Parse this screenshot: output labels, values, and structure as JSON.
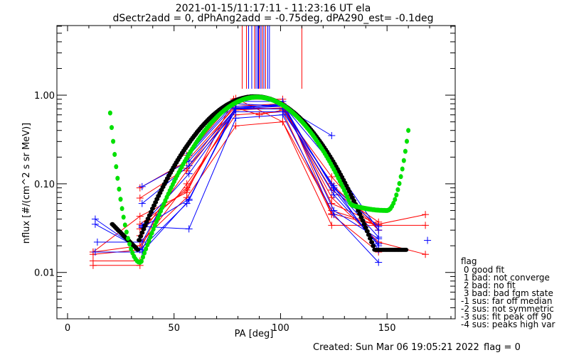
{
  "chart_data": {
    "type": "line",
    "title_line1": "2021-01-15/11:17:11 - 11:23:16 UT ela",
    "title_line2": "dSectr2add = 0, dPhAng2add = -0.75deg, dPA290_est=  -0.1deg",
    "xlabel": "PA [deg]",
    "ylabel": "nflux [#/(cm^2 s sr MeV)]",
    "xlim": [
      -5,
      182
    ],
    "ylim": [
      0.003,
      6.1
    ],
    "yscale": "log",
    "xticks": [
      0,
      50,
      100,
      150
    ],
    "xtick_labels": [
      "0",
      "50",
      "100",
      "150"
    ],
    "yticks": [
      1.0,
      0.1,
      0.01
    ],
    "ytick_labels": [
      "1.00",
      "0.10",
      "0.01"
    ],
    "colors": {
      "red": "#ff0000",
      "blue": "#0000ff",
      "green": "#00e000",
      "black": "#000000"
    },
    "series": [
      {
        "name": "r1",
        "color": "red",
        "points": [
          [
            12,
            0.017
          ],
          [
            34,
            0.043
          ],
          [
            56,
            0.08
          ],
          [
            78,
            0.9
          ],
          [
            101,
            0.9
          ],
          [
            124,
            0.046
          ],
          [
            146,
            0.034
          ]
        ]
      },
      {
        "name": "r2",
        "color": "red",
        "points": [
          [
            12,
            0.0135
          ],
          [
            34,
            0.0135
          ]
        ]
      },
      {
        "name": "r3",
        "color": "red",
        "points": [
          [
            12,
            0.012
          ],
          [
            34,
            0.012
          ]
        ]
      },
      {
        "name": "r4",
        "color": "red",
        "points": [
          [
            12,
            0.016
          ],
          [
            34,
            0.018
          ],
          [
            56,
            0.21
          ],
          [
            79,
            0.92
          ],
          [
            101,
            0.5
          ],
          [
            124,
            0.034
          ],
          [
            146,
            0.034
          ],
          [
            168,
            0.034
          ]
        ]
      },
      {
        "name": "r5",
        "color": "red",
        "points": [
          [
            34,
            0.09
          ],
          [
            56,
            0.18
          ],
          [
            79,
            0.75
          ],
          [
            101,
            0.8
          ],
          [
            124,
            0.06
          ],
          [
            146,
            0.035
          ],
          [
            168,
            0.045
          ]
        ]
      },
      {
        "name": "r6",
        "color": "red",
        "points": [
          [
            34,
            0.069
          ],
          [
            56,
            0.15
          ],
          [
            79,
            0.8
          ],
          [
            101,
            0.75
          ],
          [
            124,
            0.07
          ],
          [
            146,
            0.022
          ],
          [
            168,
            0.016
          ]
        ]
      },
      {
        "name": "r7",
        "color": "red",
        "points": [
          [
            34,
            0.026
          ],
          [
            56,
            0.14
          ],
          [
            79,
            0.72
          ],
          [
            101,
            0.7
          ],
          [
            124,
            0.085
          ],
          [
            146,
            0.037
          ]
        ]
      },
      {
        "name": "r8",
        "color": "red",
        "points": [
          [
            34,
            0.031
          ],
          [
            56,
            0.09
          ],
          [
            79,
            0.68
          ],
          [
            101,
            0.72
          ],
          [
            124,
            0.1
          ],
          [
            146,
            0.03
          ]
        ]
      },
      {
        "name": "r9",
        "color": "red",
        "points": [
          [
            12,
            0.017
          ],
          [
            34,
            0.02
          ],
          [
            56,
            0.1
          ],
          [
            79,
            0.6
          ],
          [
            101,
            0.65
          ],
          [
            124,
            0.045
          ],
          [
            146,
            0.017
          ]
        ]
      },
      {
        "name": "r10",
        "color": "red",
        "points": [
          [
            34,
            0.035
          ],
          [
            56,
            0.085
          ],
          [
            79,
            0.72
          ],
          [
            90,
            0.6
          ],
          [
            101,
            0.68
          ],
          [
            124,
            0.12
          ],
          [
            146,
            0.03
          ]
        ]
      },
      {
        "name": "r11",
        "color": "red",
        "points": [
          [
            34,
            0.022
          ],
          [
            56,
            0.07
          ],
          [
            79,
            0.45
          ],
          [
            101,
            0.5
          ],
          [
            124,
            0.05
          ],
          [
            146,
            0.034
          ]
        ]
      },
      {
        "name": "b1",
        "color": "blue",
        "points": [
          [
            13,
            0.04
          ],
          [
            34,
            0.018
          ],
          [
            56,
            0.06
          ],
          [
            79,
            0.7
          ],
          [
            101,
            0.75
          ],
          [
            124,
            0.35
          ]
        ]
      },
      {
        "name": "b2",
        "color": "blue",
        "points": [
          [
            13,
            0.035
          ],
          [
            35,
            0.018
          ],
          [
            57,
            0.22
          ],
          [
            79,
            0.85
          ],
          [
            101,
            0.85
          ],
          [
            125,
            0.05
          ],
          [
            146,
            0.024
          ]
        ]
      },
      {
        "name": "b3",
        "color": "blue",
        "points": [
          [
            14,
            0.022
          ],
          [
            35,
            0.022
          ],
          [
            57,
            0.21
          ],
          [
            79,
            0.8
          ],
          [
            101,
            0.75
          ],
          [
            125,
            0.09
          ],
          [
            146,
            0.025
          ]
        ]
      },
      {
        "name": "b4",
        "color": "blue",
        "points": [
          [
            13,
            0.017
          ],
          [
            35,
            0.017
          ],
          [
            57,
            0.065
          ],
          [
            79,
            0.75
          ],
          [
            101,
            0.75
          ],
          [
            125,
            0.09
          ],
          [
            146,
            0.033
          ]
        ]
      },
      {
        "name": "b5",
        "color": "blue",
        "points": [
          [
            35,
            0.093
          ],
          [
            57,
            0.18
          ],
          [
            79,
            0.7
          ],
          [
            101,
            0.7
          ],
          [
            125,
            0.075
          ],
          [
            146,
            0.021
          ]
        ]
      },
      {
        "name": "b6",
        "color": "blue",
        "points": [
          [
            35,
            0.06
          ],
          [
            57,
            0.16
          ],
          [
            79,
            0.65
          ],
          [
            101,
            0.65
          ],
          [
            125,
            0.095
          ],
          [
            146,
            0.018
          ]
        ]
      },
      {
        "name": "b7",
        "color": "blue",
        "points": [
          [
            35,
            0.033
          ],
          [
            57,
            0.031
          ],
          [
            79,
            0.55
          ],
          [
            101,
            0.6
          ],
          [
            125,
            0.045
          ],
          [
            146,
            0.013
          ]
        ]
      },
      {
        "name": "b8",
        "color": "blue",
        "points": [
          [
            35,
            0.032
          ],
          [
            57,
            0.067
          ],
          [
            79,
            0.7
          ],
          [
            101,
            0.8
          ],
          [
            125,
            0.085
          ],
          [
            146,
            0.02
          ]
        ]
      },
      {
        "name": "b9",
        "color": "blue",
        "points": [
          [
            35,
            0.034
          ],
          [
            57,
            0.13
          ],
          [
            79,
            0.72
          ],
          [
            101,
            0.78
          ],
          [
            125,
            0.16
          ],
          [
            146,
            0.03
          ]
        ]
      },
      {
        "name": "b10",
        "color": "blue",
        "points": [
          [
            169,
            0.023
          ]
        ]
      }
    ],
    "fit_green": {
      "name": "fit-green",
      "color": "green",
      "x_start": 20,
      "x_end": 160
    },
    "fit_black": {
      "name": "fit-black",
      "color": "black",
      "x_start": 21,
      "x_end": 159
    },
    "top_markers": [
      {
        "pa": 82.0,
        "color": "red"
      },
      {
        "pa": 84.0,
        "color": "red"
      },
      {
        "pa": 85.0,
        "color": "blue"
      },
      {
        "pa": 86.5,
        "color": "blue"
      },
      {
        "pa": 87.8,
        "color": "red"
      },
      {
        "pa": 88.5,
        "color": "blue"
      },
      {
        "pa": 89.3,
        "color": "blue"
      },
      {
        "pa": 89.7,
        "color": "blue"
      },
      {
        "pa": 90.1,
        "color": "red"
      },
      {
        "pa": 90.8,
        "color": "blue"
      },
      {
        "pa": 91.5,
        "color": "red"
      },
      {
        "pa": 92.2,
        "color": "blue"
      },
      {
        "pa": 93.0,
        "color": "red"
      },
      {
        "pa": 94.0,
        "color": "blue"
      },
      {
        "pa": 94.8,
        "color": "blue"
      },
      {
        "pa": 110.0,
        "color": "red"
      }
    ]
  },
  "legend": {
    "title": "flag",
    "entries": [
      " 0 good fit",
      " 1 bad: not converge",
      " 2 bad: no fit",
      " 3 bad: bad fgm state",
      "-1 sus: far off median",
      "-2 sus: not symmetric",
      "-3 sus: fit peak off 90",
      "-4 sus: peaks high var"
    ]
  },
  "footer": {
    "created": "Created: Sun Mar 06 19:05:21 2022",
    "flag": "flag = 0"
  }
}
